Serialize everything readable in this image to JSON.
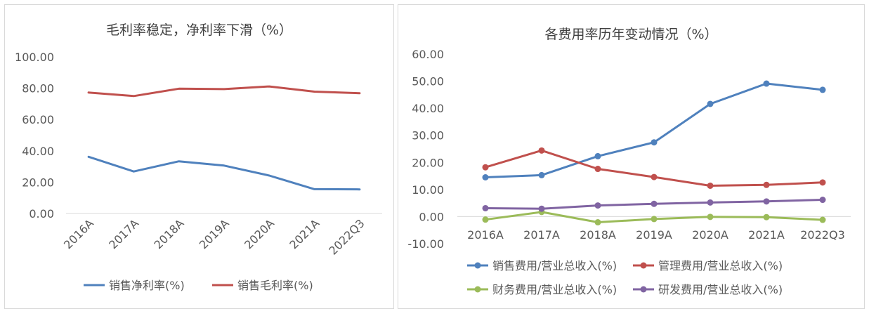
{
  "chart_data": [
    {
      "type": "line",
      "title": "毛利率稳定，净利率下滑（%）",
      "categories": [
        "2016A",
        "2017A",
        "2018A",
        "2019A",
        "2020A",
        "2021A",
        "2022Q3"
      ],
      "ylim": [
        0,
        100
      ],
      "yticks": [
        "0.00",
        "20.00",
        "40.00",
        "60.00",
        "80.00",
        "100.00"
      ],
      "grid": false,
      "legend_position": "bottom",
      "series": [
        {
          "name": "销售净利率(%)",
          "color": "#4f81bd",
          "values": [
            36.2,
            26.8,
            33.3,
            30.6,
            24.2,
            15.5,
            15.4
          ]
        },
        {
          "name": "销售毛利率(%)",
          "color": "#c0504d",
          "values": [
            77.2,
            75.0,
            79.7,
            79.4,
            81.1,
            77.8,
            76.8
          ]
        }
      ]
    },
    {
      "type": "line",
      "title": "各费用率历年变动情况（%）",
      "categories": [
        "2016A",
        "2017A",
        "2018A",
        "2019A",
        "2020A",
        "2021A",
        "2022Q3"
      ],
      "ylim": [
        -10,
        60
      ],
      "yticks": [
        "-10.00",
        "0.00",
        "10.00",
        "20.00",
        "30.00",
        "40.00",
        "50.00",
        "60.00"
      ],
      "grid": false,
      "markers": true,
      "legend_position": "bottom",
      "series": [
        {
          "name": "销售费用/营业总收入(%)",
          "color": "#4f81bd",
          "values": [
            14.5,
            15.3,
            22.3,
            27.4,
            41.6,
            49.1,
            46.8
          ]
        },
        {
          "name": "管理费用/营业总收入(%)",
          "color": "#c0504d",
          "values": [
            18.2,
            24.4,
            17.6,
            14.6,
            11.4,
            11.7,
            12.6
          ]
        },
        {
          "name": "财务费用/营业总收入(%)",
          "color": "#9bbb59",
          "values": [
            -1.1,
            1.7,
            -2.1,
            -0.9,
            -0.1,
            -0.2,
            -1.2
          ]
        },
        {
          "name": "研发费用/营业总收入(%)",
          "color": "#8064a2",
          "values": [
            3.1,
            2.9,
            4.1,
            4.7,
            5.2,
            5.6,
            6.2
          ]
        }
      ]
    }
  ]
}
